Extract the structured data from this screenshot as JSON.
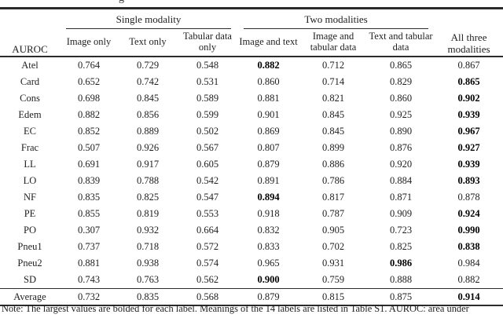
{
  "page": {
    "background": "#ffffff",
    "ink": "#1f1f1f",
    "rule_color": "#2b2b2b",
    "cropped_caption_fragment": "g"
  },
  "table": {
    "corner_label": "AUROC",
    "group_headers": [
      {
        "label": "Single modality"
      },
      {
        "label": "Two modalities"
      }
    ],
    "all_three_label": "All three modalities",
    "sub_headers": [
      "Image only",
      "Text only",
      "Tabular data only",
      "Image and text",
      "Image and tabular data",
      "Text and tabular data"
    ],
    "rows": [
      {
        "label": "Atel",
        "values": [
          "0.764",
          "0.729",
          "0.548",
          "0.882",
          "0.712",
          "0.865",
          "0.867"
        ],
        "bold_index": 3
      },
      {
        "label": "Card",
        "values": [
          "0.652",
          "0.742",
          "0.531",
          "0.860",
          "0.714",
          "0.829",
          "0.865"
        ],
        "bold_index": 6
      },
      {
        "label": "Cons",
        "values": [
          "0.698",
          "0.845",
          "0.589",
          "0.881",
          "0.821",
          "0.860",
          "0.902"
        ],
        "bold_index": 6
      },
      {
        "label": "Edem",
        "values": [
          "0.882",
          "0.856",
          "0.599",
          "0.901",
          "0.845",
          "0.925",
          "0.939"
        ],
        "bold_index": 6
      },
      {
        "label": "EC",
        "values": [
          "0.852",
          "0.889",
          "0.502",
          "0.869",
          "0.845",
          "0.890",
          "0.967"
        ],
        "bold_index": 6
      },
      {
        "label": "Frac",
        "values": [
          "0.507",
          "0.926",
          "0.567",
          "0.807",
          "0.899",
          "0.876",
          "0.927"
        ],
        "bold_index": 6
      },
      {
        "label": "LL",
        "values": [
          "0.691",
          "0.917",
          "0.605",
          "0.879",
          "0.886",
          "0.920",
          "0.939"
        ],
        "bold_index": 6
      },
      {
        "label": "LO",
        "values": [
          "0.839",
          "0.788",
          "0.542",
          "0.891",
          "0.786",
          "0.884",
          "0.893"
        ],
        "bold_index": 6
      },
      {
        "label": "NF",
        "values": [
          "0.835",
          "0.825",
          "0.547",
          "0.894",
          "0.817",
          "0.871",
          "0.878"
        ],
        "bold_index": 3
      },
      {
        "label": "PE",
        "values": [
          "0.855",
          "0.819",
          "0.553",
          "0.918",
          "0.787",
          "0.909",
          "0.924"
        ],
        "bold_index": 6
      },
      {
        "label": "PO",
        "values": [
          "0.307",
          "0.932",
          "0.664",
          "0.832",
          "0.905",
          "0.723",
          "0.990"
        ],
        "bold_index": 6
      },
      {
        "label": "Pneu1",
        "values": [
          "0.737",
          "0.718",
          "0.572",
          "0.833",
          "0.702",
          "0.825",
          "0.838"
        ],
        "bold_index": 6
      },
      {
        "label": "Pneu2",
        "values": [
          "0.881",
          "0.938",
          "0.574",
          "0.965",
          "0.931",
          "0.986",
          "0.984"
        ],
        "bold_index": 5
      },
      {
        "label": "SD",
        "values": [
          "0.743",
          "0.763",
          "0.562",
          "0.900",
          "0.759",
          "0.888",
          "0.882"
        ],
        "bold_index": 3
      }
    ],
    "average_row": {
      "label": "Average",
      "values": [
        "0.732",
        "0.835",
        "0.568",
        "0.879",
        "0.815",
        "0.875",
        "0.914"
      ],
      "bold_index": 6
    }
  },
  "note": "Note: The largest values are bolded for each label. Meanings of the 14 labels are listed in Table S1. AUROC: area under"
}
